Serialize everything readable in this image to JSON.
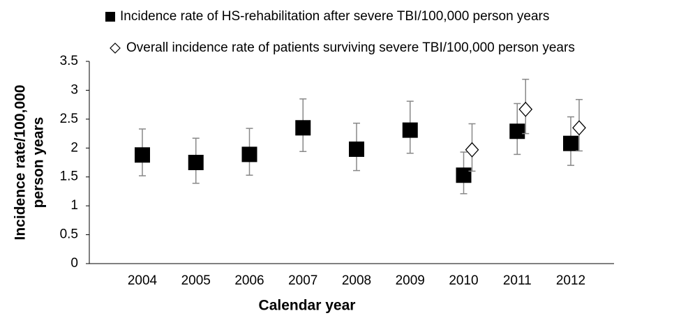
{
  "chart_data": {
    "type": "errorbar",
    "xlabel": "Calendar year",
    "ylabel": [
      "Incidence rate/100,000",
      "person years"
    ],
    "categories": [
      "2004",
      "2005",
      "2006",
      "2007",
      "2008",
      "2009",
      "2010",
      "2011",
      "2012"
    ],
    "ylim": [
      0,
      3.5
    ],
    "yticks": [
      0,
      0.5,
      1,
      1.5,
      2,
      2.5,
      3,
      3.5
    ],
    "series": [
      {
        "name": "Incidence rate of HS-rehabilitation after severe TBI/100,000 person years",
        "marker": "square",
        "color": "#000000",
        "values": [
          1.88,
          1.75,
          1.89,
          2.35,
          1.98,
          2.31,
          1.53,
          2.29,
          2.08
        ],
        "error_low": [
          1.52,
          1.39,
          1.53,
          1.94,
          1.61,
          1.91,
          1.21,
          1.89,
          1.7
        ],
        "error_high": [
          2.33,
          2.17,
          2.34,
          2.85,
          2.43,
          2.81,
          1.93,
          2.77,
          2.54
        ]
      },
      {
        "name": "Overall incidence rate of patients surviving severe TBI/100,000 person years",
        "marker": "diamond",
        "color": "#000000",
        "values": [
          null,
          null,
          null,
          null,
          null,
          null,
          1.97,
          2.67,
          2.35
        ],
        "error_low": [
          null,
          null,
          null,
          null,
          null,
          null,
          1.6,
          2.25,
          1.95
        ],
        "error_high": [
          null,
          null,
          null,
          null,
          null,
          null,
          2.42,
          3.19,
          2.84
        ]
      }
    ]
  }
}
